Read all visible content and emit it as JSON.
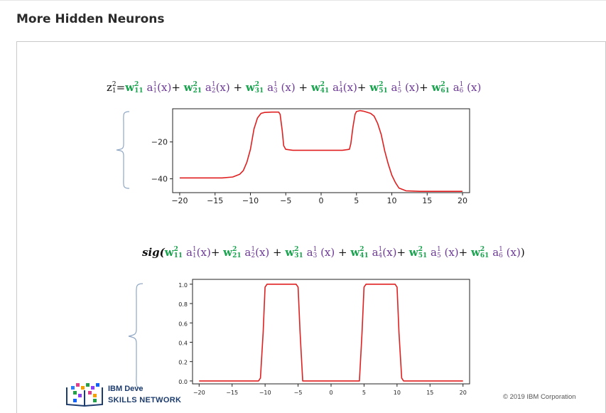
{
  "page": {
    "title": "More Hidden Neurons"
  },
  "formula1": {
    "lhs": "z",
    "lhs_sup": "2",
    "lhs_sub": "1",
    "eq": "=",
    "terms": [
      {
        "w_sup": "2",
        "w_sub": "11",
        "a_sup": "1",
        "a_sub": "1",
        "arg": "(x)",
        "sep": "+ "
      },
      {
        "w_sup": "2",
        "w_sub": "21",
        "a_sup": "1",
        "a_sub": "2",
        "arg": "(x)",
        "sep": " + "
      },
      {
        "w_sup": "2",
        "w_sub": "31",
        "a_sup": "1",
        "a_sub": "3",
        "arg": " (x)",
        "sep": " + "
      },
      {
        "w_sup": "2",
        "w_sub": "41",
        "a_sup": "1",
        "a_sub": "4",
        "arg": "(x)",
        "sep": "+ "
      },
      {
        "w_sup": "2",
        "w_sub": "51",
        "a_sup": "1",
        "a_sub": "5",
        "arg": " (x)",
        "sep": "+ "
      },
      {
        "w_sup": "2",
        "w_sub": "61",
        "a_sup": "1",
        "a_sub": "6",
        "arg": " (x)",
        "sep": ""
      }
    ]
  },
  "formula2": {
    "prefix": "sig(",
    "suffix": ")",
    "terms": [
      {
        "w_sup": "2",
        "w_sub": "11",
        "a_sup": "1",
        "a_sub": "1",
        "arg": "(x)",
        "sep": "+ "
      },
      {
        "w_sup": "2",
        "w_sub": "21",
        "a_sup": "1",
        "a_sub": "2",
        "arg": "(x)",
        "sep": " + "
      },
      {
        "w_sup": "2",
        "w_sub": "31",
        "a_sup": "1",
        "a_sub": "3",
        "arg": " (x)",
        "sep": " + "
      },
      {
        "w_sup": "2",
        "w_sub": "41",
        "a_sup": "1",
        "a_sub": "4",
        "arg": "(x)",
        "sep": "+ "
      },
      {
        "w_sup": "2",
        "w_sub": "51",
        "a_sup": "1",
        "a_sub": "5",
        "arg": " (x)",
        "sep": "+ "
      },
      {
        "w_sup": "2",
        "w_sub": "61",
        "a_sup": "1",
        "a_sub": "6",
        "arg": " (x)",
        "sep": ""
      }
    ]
  },
  "chart_data": [
    {
      "type": "line",
      "title": "",
      "xlabel": "",
      "ylabel": "",
      "xlim": [
        -21,
        21
      ],
      "ylim": [
        -47.5,
        -2
      ],
      "xticks": [
        -20,
        -15,
        -10,
        -5,
        0,
        5,
        10,
        15,
        20
      ],
      "xtick_labels": [
        "−20",
        "−15",
        "−10",
        "−5",
        "0",
        "5",
        "10",
        "15",
        "20"
      ],
      "yticks": [
        -20,
        -40
      ],
      "ytick_labels": [
        "−20",
        "−40"
      ],
      "grid": false,
      "series": [
        {
          "color": "#e02020",
          "x": [
            -20,
            -14,
            -12.5,
            -11.5,
            -11,
            -10.5,
            -10,
            -9.5,
            -9,
            -8.5,
            -8,
            -7,
            -6,
            -5.8,
            -5.5,
            -5.3,
            -5,
            -4,
            0,
            3,
            4,
            4.2,
            4.5,
            4.8,
            5,
            5.5,
            6,
            7,
            7.5,
            8,
            8.5,
            9,
            9.5,
            10,
            10.5,
            11,
            12,
            14,
            20
          ],
          "y": [
            -39.5,
            -39.5,
            -39,
            -37.5,
            -35.5,
            -31,
            -24,
            -13,
            -7,
            -4.5,
            -4,
            -3.8,
            -3.8,
            -5,
            -14,
            -22,
            -24,
            -24.5,
            -24.5,
            -24.5,
            -24,
            -21,
            -12,
            -5,
            -3.5,
            -3,
            -3.3,
            -4.5,
            -6,
            -10,
            -16,
            -25,
            -32,
            -38,
            -42,
            -45,
            -46.5,
            -46.8,
            -46.8
          ]
        }
      ]
    },
    {
      "type": "line",
      "title": "",
      "xlabel": "",
      "ylabel": "",
      "xlim": [
        -21,
        21
      ],
      "ylim": [
        -0.03,
        1.05
      ],
      "xticks": [
        -20,
        -15,
        -10,
        -5,
        0,
        5,
        10,
        15,
        20
      ],
      "xtick_labels": [
        "−20",
        "−15",
        "−10",
        "−5",
        "0",
        "5",
        "10",
        "15",
        "20"
      ],
      "yticks": [
        0.0,
        0.2,
        0.4,
        0.6,
        0.8,
        1.0
      ],
      "ytick_labels": [
        "0.0",
        "0.2",
        "0.4",
        "0.6",
        "0.8",
        "1.0"
      ],
      "grid": false,
      "series": [
        {
          "color": "#e02020",
          "x": [
            -20,
            -11,
            -10.7,
            -10.3,
            -10,
            -9.7,
            -5.3,
            -5,
            -4.7,
            -4.3,
            4.3,
            4.7,
            5,
            5.3,
            9.7,
            10,
            10.3,
            10.7,
            11,
            20
          ],
          "y": [
            0,
            0,
            0.03,
            0.5,
            0.97,
            1,
            1,
            0.97,
            0.5,
            0,
            0,
            0.5,
            0.97,
            1,
            1,
            0.97,
            0.5,
            0.03,
            0,
            0
          ]
        }
      ]
    }
  ],
  "footer": {
    "copyright": "© 2019 IBM Corporation",
    "logo_line1": "IBM Deve",
    "logo_line2": "SKILLS NETWORK"
  }
}
